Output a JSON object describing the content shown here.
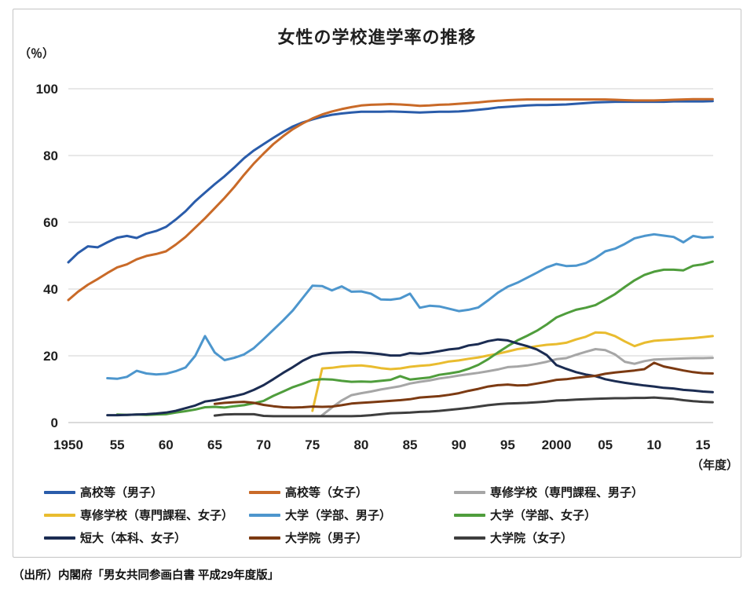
{
  "page": {
    "title": "女性の学校進学率の推移",
    "source": "（出所）内閣府「男女共同参画白書 平成29年度版」"
  },
  "axis": {
    "y_unit": "（％）",
    "x_unit": "（年度）",
    "y_ticks": [
      0,
      20,
      40,
      60,
      80,
      100
    ],
    "x_ticks": [
      {
        "year": 1950,
        "label": "1950"
      },
      {
        "year": 1955,
        "label": "55"
      },
      {
        "year": 1960,
        "label": "60"
      },
      {
        "year": 1965,
        "label": "65"
      },
      {
        "year": 1970,
        "label": "70"
      },
      {
        "year": 1975,
        "label": "75"
      },
      {
        "year": 1980,
        "label": "80"
      },
      {
        "year": 1985,
        "label": "85"
      },
      {
        "year": 1990,
        "label": "90"
      },
      {
        "year": 1995,
        "label": "95"
      },
      {
        "year": 2000,
        "label": "2000"
      },
      {
        "year": 2005,
        "label": "05"
      },
      {
        "year": 2010,
        "label": "10"
      },
      {
        "year": 2015,
        "label": "15"
      }
    ]
  },
  "chart_data": {
    "type": "line",
    "title": "女性の学校進学率の推移",
    "xlabel": "年度",
    "ylabel": "％",
    "x_range": [
      1950,
      2016
    ],
    "ylim": [
      0,
      100
    ],
    "grid": true,
    "legend_position": "bottom",
    "series": [
      {
        "name": "高校等（男子）",
        "color": "#2A5CAA",
        "start_year": 1950,
        "values": [
          48.0,
          50.8,
          52.8,
          52.5,
          54.0,
          55.4,
          55.9,
          55.3,
          56.6,
          57.4,
          58.6,
          60.8,
          63.3,
          66.3,
          68.9,
          71.4,
          73.8,
          76.4,
          79.2,
          81.5,
          83.4,
          85.3,
          87.1,
          88.7,
          89.9,
          90.8,
          91.6,
          92.2,
          92.6,
          92.9,
          93.1,
          93.1,
          93.1,
          93.2,
          93.1,
          93.0,
          92.9,
          93.0,
          93.1,
          93.1,
          93.2,
          93.4,
          93.7,
          94.0,
          94.4,
          94.6,
          94.8,
          95.0,
          95.1,
          95.1,
          95.2,
          95.3,
          95.5,
          95.7,
          95.9,
          96.0,
          96.1,
          96.1,
          96.1,
          96.1,
          96.1,
          96.1,
          96.2,
          96.2,
          96.2,
          96.2,
          96.3
        ]
      },
      {
        "name": "高校等（女子）",
        "color": "#C96A28",
        "start_year": 1950,
        "values": [
          36.7,
          39.2,
          41.3,
          43.0,
          44.8,
          46.5,
          47.4,
          48.9,
          49.9,
          50.5,
          51.3,
          53.3,
          55.6,
          58.4,
          61.2,
          64.2,
          67.3,
          70.6,
          74.2,
          77.6,
          80.6,
          83.4,
          85.8,
          87.9,
          89.6,
          91.1,
          92.3,
          93.2,
          93.9,
          94.5,
          95.0,
          95.2,
          95.3,
          95.4,
          95.3,
          95.1,
          94.9,
          95.0,
          95.2,
          95.3,
          95.5,
          95.7,
          95.9,
          96.2,
          96.4,
          96.6,
          96.7,
          96.8,
          96.8,
          96.8,
          96.8,
          96.8,
          96.8,
          96.8,
          96.8,
          96.8,
          96.7,
          96.6,
          96.5,
          96.5,
          96.5,
          96.6,
          96.7,
          96.8,
          96.9,
          96.9,
          96.9
        ]
      },
      {
        "name": "専修学校（専門課程、男子）",
        "color": "#A6A6A6",
        "start_year": 1976,
        "values": [
          2.2,
          4.5,
          6.6,
          8.2,
          8.8,
          9.3,
          9.9,
          10.4,
          10.9,
          11.7,
          12.2,
          12.6,
          13.2,
          13.6,
          14.1,
          14.5,
          14.9,
          15.4,
          15.9,
          16.6,
          16.8,
          17.1,
          17.6,
          18.2,
          19.0,
          19.3,
          20.3,
          21.2,
          22.0,
          21.7,
          20.4,
          18.2,
          17.6,
          18.4,
          18.9,
          19.0,
          19.1,
          19.2,
          19.3,
          19.3,
          19.4
        ]
      },
      {
        "name": "専修学校（専門課程、女子）",
        "color": "#E9BC2F",
        "start_year": 1975,
        "values": [
          3.5,
          16.2,
          16.4,
          16.8,
          17.0,
          17.1,
          16.8,
          16.3,
          16.0,
          16.2,
          16.7,
          17.0,
          17.2,
          17.7,
          18.3,
          18.6,
          19.1,
          19.5,
          20.1,
          20.6,
          21.3,
          22.0,
          22.4,
          22.9,
          23.3,
          23.5,
          23.9,
          24.9,
          25.7,
          27.0,
          26.9,
          25.9,
          24.3,
          22.9,
          23.9,
          24.5,
          24.7,
          24.9,
          25.1,
          25.3,
          25.6,
          25.9
        ]
      },
      {
        "name": "大学（学部、男子）",
        "color": "#4D96CD",
        "start_year": 1954,
        "values": [
          13.3,
          13.1,
          13.7,
          15.5,
          14.7,
          14.4,
          14.6,
          15.4,
          16.5,
          20.0,
          25.9,
          21.0,
          18.7,
          19.4,
          20.4,
          22.3,
          25.0,
          27.8,
          30.6,
          33.6,
          37.3,
          41.0,
          40.9,
          39.6,
          40.8,
          39.2,
          39.3,
          38.6,
          36.9,
          36.8,
          37.2,
          38.6,
          34.4,
          35.0,
          34.8,
          34.1,
          33.4,
          33.8,
          34.5,
          36.6,
          38.9,
          40.7,
          41.9,
          43.4,
          44.9,
          46.5,
          47.5,
          46.9,
          47.0,
          47.8,
          49.3,
          51.3,
          52.1,
          53.5,
          55.2,
          55.9,
          56.4,
          56.0,
          55.6,
          54.0,
          55.9,
          55.4,
          55.6
        ]
      },
      {
        "name": "大学（学部、女子）",
        "color": "#4F9D3C",
        "start_year": 1955,
        "values": [
          2.4,
          2.3,
          2.4,
          2.3,
          2.4,
          2.5,
          3.0,
          3.4,
          3.9,
          4.6,
          4.7,
          4.5,
          4.9,
          5.2,
          5.8,
          6.5,
          8.0,
          9.3,
          10.6,
          11.6,
          12.7,
          13.0,
          12.9,
          12.5,
          12.2,
          12.3,
          12.2,
          12.5,
          12.8,
          13.9,
          12.9,
          13.2,
          13.5,
          14.3,
          14.7,
          15.2,
          16.1,
          17.3,
          19.0,
          21.0,
          22.9,
          24.6,
          26.0,
          27.5,
          29.4,
          31.5,
          32.7,
          33.8,
          34.4,
          35.2,
          36.8,
          38.5,
          40.6,
          42.6,
          44.2,
          45.2,
          45.8,
          45.8,
          45.6,
          47.0,
          47.4,
          48.2
        ]
      },
      {
        "name": "短大（本科、女子）",
        "color": "#1B2C52",
        "start_year": 1954,
        "values": [
          2.2,
          2.2,
          2.3,
          2.4,
          2.5,
          2.7,
          3.0,
          3.5,
          4.3,
          5.1,
          6.3,
          6.7,
          7.3,
          7.9,
          8.6,
          9.8,
          11.2,
          13.0,
          14.9,
          16.6,
          18.5,
          19.9,
          20.6,
          20.9,
          21.0,
          21.1,
          21.0,
          20.8,
          20.5,
          20.1,
          20.1,
          20.8,
          20.6,
          20.9,
          21.4,
          21.9,
          22.2,
          23.1,
          23.5,
          24.4,
          24.9,
          24.6,
          23.7,
          22.9,
          21.9,
          20.2,
          17.2,
          16.1,
          15.1,
          14.4,
          13.9,
          13.0,
          12.4,
          11.9,
          11.5,
          11.1,
          10.8,
          10.4,
          10.2,
          9.8,
          9.6,
          9.3,
          9.1
        ]
      },
      {
        "name": "大学院（男子）",
        "color": "#7C3A12",
        "start_year": 1965,
        "values": [
          5.6,
          5.9,
          6.1,
          6.2,
          5.9,
          5.3,
          4.9,
          4.6,
          4.5,
          4.6,
          4.8,
          4.7,
          4.8,
          5.2,
          5.7,
          5.9,
          6.1,
          6.3,
          6.5,
          6.7,
          7.0,
          7.5,
          7.7,
          7.9,
          8.3,
          8.8,
          9.5,
          10.1,
          10.8,
          11.2,
          11.4,
          11.1,
          11.2,
          11.7,
          12.2,
          12.8,
          13.0,
          13.4,
          13.7,
          14.0,
          14.6,
          15.0,
          15.3,
          15.6,
          16.0,
          17.9,
          16.8,
          16.2,
          15.6,
          15.1,
          14.8,
          14.7
        ]
      },
      {
        "name": "大学院（女子）",
        "color": "#3E3E3E",
        "start_year": 1965,
        "values": [
          2.1,
          2.4,
          2.5,
          2.5,
          2.5,
          2.0,
          1.9,
          1.9,
          1.9,
          1.9,
          1.9,
          1.9,
          1.9,
          1.9,
          1.9,
          2.0,
          2.2,
          2.5,
          2.8,
          2.9,
          3.0,
          3.2,
          3.3,
          3.5,
          3.8,
          4.1,
          4.4,
          4.8,
          5.2,
          5.5,
          5.7,
          5.8,
          5.9,
          6.1,
          6.3,
          6.6,
          6.7,
          6.9,
          7.0,
          7.1,
          7.2,
          7.3,
          7.3,
          7.4,
          7.4,
          7.5,
          7.3,
          7.1,
          6.7,
          6.4,
          6.2,
          6.1
        ]
      }
    ]
  }
}
